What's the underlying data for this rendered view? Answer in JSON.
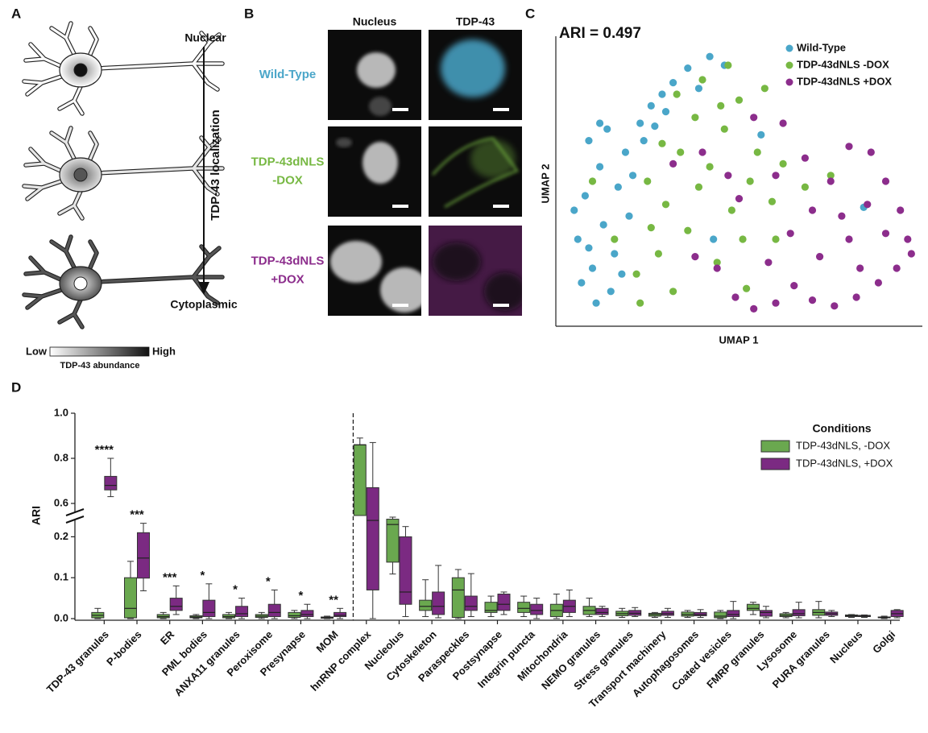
{
  "panel_a": {
    "label": "A",
    "top_label": "Nuclear",
    "axis_label": "TDP-43 localization",
    "bottom_label": "Cytoplasmic",
    "scale_low": "Low",
    "scale_high": "High",
    "scale_title": "TDP-43 abundance"
  },
  "panel_b": {
    "label": "B",
    "columns": [
      "Nucleus",
      "TDP-43"
    ],
    "rows": [
      {
        "lines": [
          "Wild-Type"
        ],
        "color": "#4aa6c9"
      },
      {
        "lines": [
          "TDP-43dNLS",
          "-DOX"
        ],
        "color": "#77b843"
      },
      {
        "lines": [
          "TDP-43dNLS",
          "+DOX"
        ],
        "color": "#8c2d8c"
      }
    ]
  },
  "chart_data": [
    {
      "type": "scatter",
      "label": "C",
      "title": "ARI = 0.497",
      "xlabel": "UMAP 1",
      "ylabel": "UMAP 2",
      "xlim": [
        0,
        10
      ],
      "ylim": [
        0,
        10
      ],
      "series": [
        {
          "name": "Wild-Type",
          "color": "#4aa6c9",
          "x": [
            0.6,
            0.8,
            1.0,
            1.2,
            0.9,
            1.5,
            1.3,
            1.7,
            0.7,
            1.1,
            1.9,
            1.6,
            2.0,
            1.4,
            2.3,
            2.6,
            2.9,
            3.2,
            3.6,
            4.2,
            2.4,
            3.0,
            0.5,
            1.8,
            1.2,
            2.1,
            3.9,
            4.6,
            2.7,
            0.9,
            4.3,
            5.6,
            8.4
          ],
          "y": [
            3.0,
            4.5,
            2.0,
            5.5,
            6.4,
            1.2,
            3.5,
            4.8,
            1.5,
            0.8,
            6.0,
            2.5,
            3.8,
            6.8,
            7.0,
            7.6,
            8.0,
            8.4,
            8.9,
            9.3,
            6.4,
            7.4,
            4.0,
            1.8,
            7.0,
            5.2,
            8.2,
            9.0,
            6.9,
            2.7,
            3.0,
            6.6,
            4.1
          ]
        },
        {
          "name": "TDP-43dNLS -DOX",
          "color": "#77b843",
          "x": [
            2.5,
            3.0,
            3.4,
            3.8,
            4.2,
            4.6,
            5.0,
            5.3,
            4.8,
            3.6,
            2.8,
            2.2,
            3.2,
            4.0,
            4.7,
            5.5,
            5.9,
            6.2,
            5.7,
            2.6,
            4.4,
            3.9,
            2.9,
            5.1,
            1.6,
            1.0,
            6.8,
            7.5,
            5.2,
            4.5,
            3.3,
            6.0,
            2.3
          ],
          "y": [
            5.0,
            4.2,
            6.0,
            7.2,
            5.5,
            6.8,
            7.8,
            5.0,
            4.0,
            3.3,
            2.5,
            1.8,
            1.2,
            8.5,
            9.0,
            6.0,
            4.3,
            5.6,
            8.2,
            3.4,
            2.2,
            4.8,
            6.3,
            3.0,
            3.0,
            5.0,
            4.8,
            5.2,
            1.3,
            7.6,
            8.0,
            3.0,
            0.8
          ]
        },
        {
          "name": "TDP-43dNLS +DOX",
          "color": "#8c2d8c",
          "x": [
            4.4,
            4.9,
            5.4,
            6.0,
            6.5,
            7.0,
            7.6,
            8.2,
            8.8,
            9.3,
            9.6,
            9.4,
            9.0,
            8.6,
            8.0,
            7.5,
            7.0,
            6.4,
            5.8,
            7.2,
            8.0,
            8.5,
            9.0,
            6.8,
            6.2,
            5.4,
            4.7,
            3.8,
            4.0,
            5.0,
            8.3,
            7.8,
            9.7,
            6.0,
            3.2
          ],
          "y": [
            2.0,
            1.0,
            0.6,
            0.8,
            1.4,
            0.9,
            0.7,
            1.0,
            1.5,
            2.0,
            3.0,
            4.0,
            5.0,
            6.0,
            6.2,
            5.0,
            4.0,
            3.2,
            2.2,
            2.4,
            3.0,
            4.2,
            3.2,
            5.8,
            7.0,
            7.2,
            5.2,
            2.4,
            6.0,
            4.4,
            2.0,
            3.8,
            2.5,
            5.2,
            5.6
          ]
        }
      ]
    },
    {
      "type": "box",
      "label": "D",
      "ylabel": "ARI",
      "legend_title": "Conditions",
      "ylim": [
        0,
        1.0
      ],
      "ybreak": [
        0.25,
        0.55
      ],
      "yticks": [
        {
          "value": 0,
          "label": "0.0"
        },
        0.1,
        0.2,
        0.6,
        0.8,
        {
          "value": 1.0,
          "label": "1.0"
        }
      ],
      "categories": [
        "TDP-43 granules",
        "P-bodies",
        "ER",
        "PML bodies",
        "ANXA11 granules",
        "Peroxisome",
        "Presynapse",
        "MOM",
        "hnRNP complex",
        "Nucleolus",
        "Cytoskeleton",
        "Paraspeckles",
        "Postsynapse",
        "Integrin puncta",
        "Mitochondria",
        "NEMO granules",
        "Stress granules",
        "Transport machinery",
        "Autophagosomes",
        "Coated vesicles",
        "FMRP granules",
        "Lysosome",
        "PURA granules",
        "Nucleus",
        "Golgi"
      ],
      "significance": [
        "****",
        "***",
        "***",
        "*",
        "*",
        "*",
        "*",
        "**",
        null,
        null,
        null,
        null,
        null,
        null,
        null,
        null,
        null,
        null,
        null,
        null,
        null,
        null,
        null,
        null,
        null
      ],
      "series": [
        {
          "name": "TDP-43dNLS, -DOX",
          "color": "#6aa84f",
          "min": [
            0,
            0,
            0,
            0,
            0,
            0,
            0,
            0,
            0.3,
            0.109,
            0.005,
            0,
            0.005,
            0.005,
            0,
            0.005,
            0.003,
            0.003,
            0.003,
            0,
            0.01,
            0.002,
            0.002,
            0.003,
            0
          ],
          "q1": [
            0.002,
            0.002,
            0.002,
            0.002,
            0.002,
            0.003,
            0.003,
            0.001,
            0.4,
            0.138,
            0.02,
            0.003,
            0.015,
            0.015,
            0.005,
            0.01,
            0.007,
            0.006,
            0.006,
            0.002,
            0.02,
            0.005,
            0.008,
            0.005,
            0.002
          ],
          "median": [
            0.008,
            0.025,
            0.005,
            0.004,
            0.005,
            0.006,
            0.007,
            0.002,
            0.86,
            0.23,
            0.03,
            0.07,
            0.02,
            0.025,
            0.02,
            0.02,
            0.012,
            0.01,
            0.01,
            0.006,
            0.025,
            0.008,
            0.015,
            0.007,
            0.003
          ],
          "q3": [
            0.015,
            0.1,
            0.01,
            0.007,
            0.01,
            0.01,
            0.015,
            0.004,
            0.86,
            0.243,
            0.045,
            0.1,
            0.04,
            0.04,
            0.035,
            0.03,
            0.018,
            0.013,
            0.016,
            0.016,
            0.035,
            0.012,
            0.022,
            0.009,
            0.004
          ],
          "max": [
            0.025,
            0.14,
            0.015,
            0.01,
            0.015,
            0.015,
            0.02,
            0.006,
            0.89,
            0.248,
            0.095,
            0.12,
            0.055,
            0.055,
            0.06,
            0.05,
            0.025,
            0.015,
            0.02,
            0.02,
            0.04,
            0.015,
            0.042,
            0.01,
            0.006
          ]
        },
        {
          "name": "TDP-43dNLS, +DOX",
          "color": "#7b2a82",
          "min": [
            0.63,
            0.068,
            0.01,
            0,
            0,
            0,
            0,
            0,
            0,
            0.005,
            0.002,
            0.005,
            0.01,
            0,
            0.005,
            0.005,
            0.005,
            0.003,
            0.003,
            0,
            0.002,
            0.002,
            0.005,
            0.003,
            0.002
          ],
          "q1": [
            0.66,
            0.099,
            0.02,
            0.005,
            0.005,
            0.005,
            0.005,
            0.005,
            0.07,
            0.035,
            0.01,
            0.02,
            0.02,
            0.01,
            0.015,
            0.01,
            0.008,
            0.008,
            0.007,
            0.005,
            0.006,
            0.007,
            0.008,
            0.005,
            0.005
          ],
          "median": [
            0.68,
            0.148,
            0.03,
            0.015,
            0.012,
            0.015,
            0.01,
            0.008,
            0.24,
            0.065,
            0.03,
            0.03,
            0.035,
            0.02,
            0.03,
            0.015,
            0.013,
            0.012,
            0.01,
            0.01,
            0.015,
            0.012,
            0.012,
            0.006,
            0.012
          ],
          "q3": [
            0.72,
            0.21,
            0.05,
            0.045,
            0.03,
            0.035,
            0.02,
            0.015,
            0.67,
            0.2,
            0.065,
            0.055,
            0.06,
            0.035,
            0.045,
            0.025,
            0.02,
            0.018,
            0.015,
            0.02,
            0.02,
            0.022,
            0.016,
            0.008,
            0.02
          ],
          "max": [
            0.8,
            0.233,
            0.08,
            0.085,
            0.05,
            0.07,
            0.035,
            0.025,
            0.87,
            0.225,
            0.13,
            0.11,
            0.065,
            0.05,
            0.07,
            0.03,
            0.027,
            0.025,
            0.022,
            0.042,
            0.03,
            0.04,
            0.02,
            0.009,
            0.022
          ]
        }
      ]
    }
  ]
}
